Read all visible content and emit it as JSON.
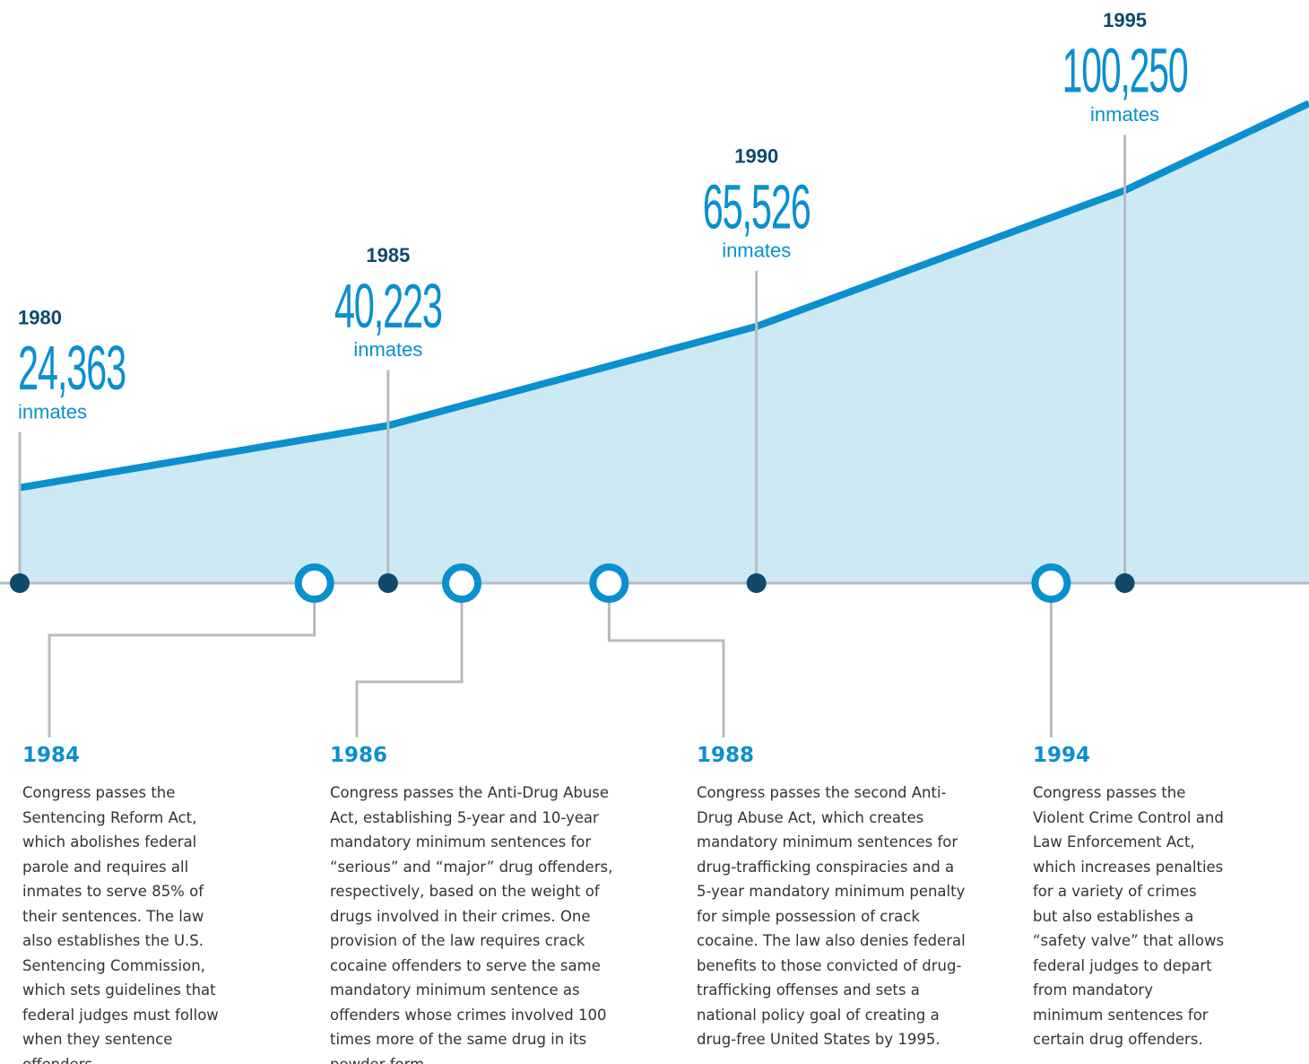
{
  "chart_data": {
    "type": "area",
    "x": [
      1980,
      1985,
      1990,
      1995
    ],
    "values": [
      24363,
      40223,
      65526,
      100250
    ],
    "value_labels": [
      "24,363",
      "40,223",
      "65,526",
      "100,250"
    ],
    "unit": "inmates",
    "xlim": [
      1980,
      1997.5
    ],
    "ylim": [
      0,
      150000
    ],
    "color": "#0a8fcf",
    "area_color": "#cde9f4",
    "events": [
      {
        "year": 1984,
        "text": "Congress passes the Sentencing Reform Act, which abolishes federal parole and requires all inmates to serve 85% of their sentences. The law also establishes the U.S. Sentencing Commission, which sets guidelines that federal judges must follow when they sentence offenders."
      },
      {
        "year": 1986,
        "text": "Congress passes the Anti-Drug Abuse Act, establishing 5-year and 10-year mandatory minimum sentences for “serious” and “major” drug offenders, respectively, based on the weight of drugs involved in their crimes. One provision of the law requires crack cocaine offenders to serve the same mandatory minimum sentence as offenders whose crimes involved 100 times more of the same drug in its powder form."
      },
      {
        "year": 1988,
        "text": "Congress passes the second Anti-Drug Abuse Act, which creates mandatory minimum sentences for drug-trafficking conspiracies and a 5-year mandatory minimum penalty for simple possession of crack cocaine. The law also denies federal benefits to those convicted of drug-trafficking offenses and sets a national policy goal of creating a drug-free United States by 1995."
      },
      {
        "year": 1994,
        "text": "Congress passes the Violent Crime Control and Law Enforcement Act, which increases penalties for a variety of crimes but also establishes a “safety valve” that allows federal judges to depart from mandatory minimum sentences for certain drug offenders."
      }
    ]
  }
}
